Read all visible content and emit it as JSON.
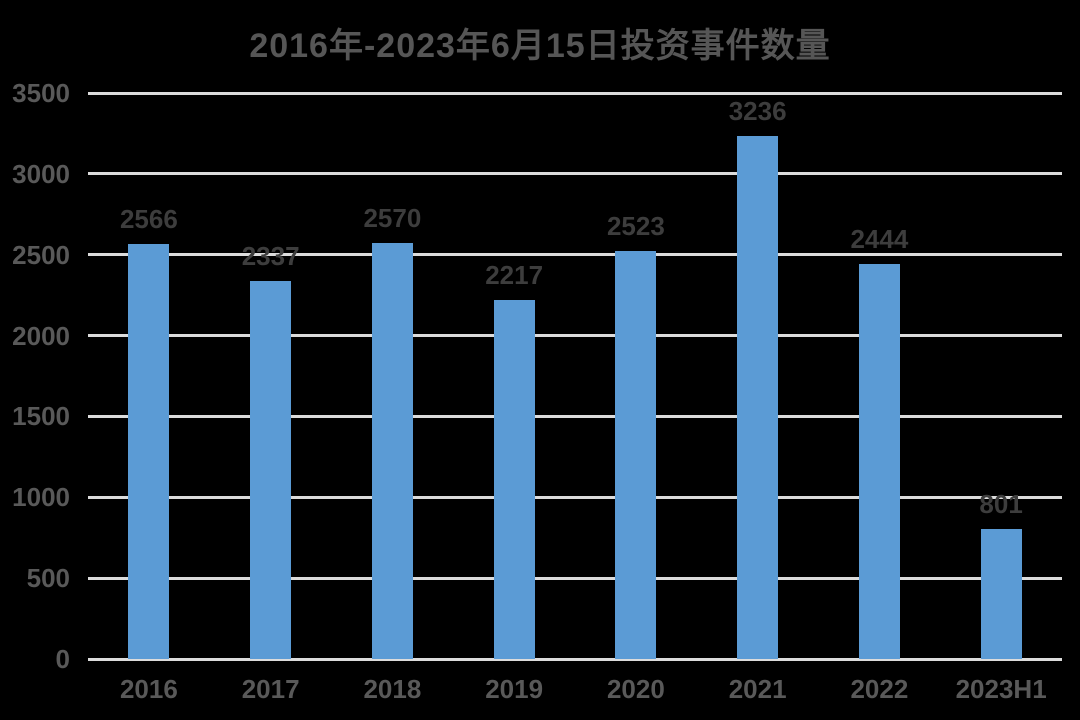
{
  "chart_data": {
    "type": "bar",
    "title": "2016年-2023年6月15日投资事件数量",
    "categories": [
      "2016",
      "2017",
      "2018",
      "2019",
      "2020",
      "2021",
      "2022",
      "2023H1"
    ],
    "values": [
      2566,
      2337,
      2570,
      2217,
      2523,
      3236,
      2444,
      801
    ],
    "xlabel": "",
    "ylabel": "",
    "ylim": [
      0,
      3500
    ],
    "yticks": [
      0,
      500,
      1000,
      1500,
      2000,
      2500,
      3000,
      3500
    ],
    "grid": true,
    "legend": false,
    "data_labels_shown": true,
    "colors": {
      "bar": "#5B9BD5",
      "gridline": "#DCDCDC",
      "background": "#000000",
      "title_text": "#565656",
      "data_label_text": "#3D3D3D",
      "axis_tick_text": "#595959"
    }
  }
}
